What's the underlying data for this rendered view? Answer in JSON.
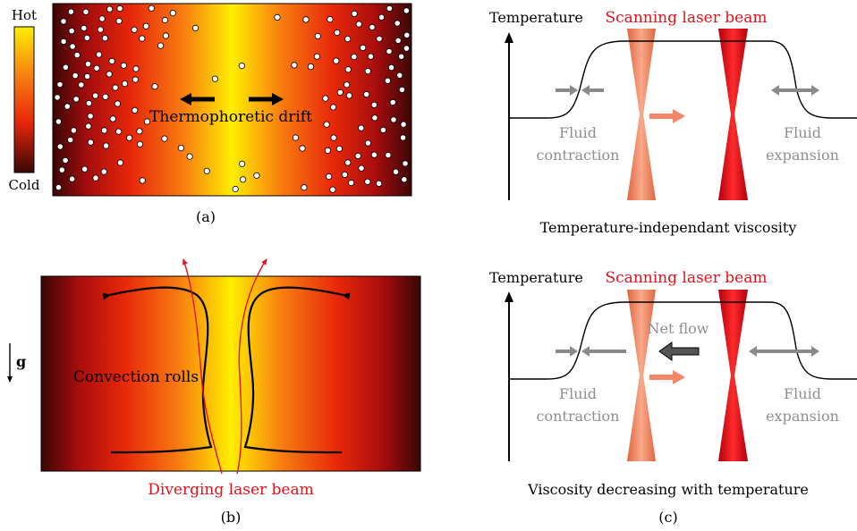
{
  "panel_a": {
    "colorbar_hot": "Hot",
    "colorbar_cold": "Cold",
    "drift_label": "Thermophoretic drift",
    "caption": "(a)"
  },
  "panel_b": {
    "gravity_label": "g",
    "convection_label": "Convection rolls",
    "beam_label": "Diverging laser beam",
    "caption": "(b)"
  },
  "panel_c": {
    "top": {
      "ylabel": "Temperature",
      "beam_label": "Scanning laser beam",
      "left_label_line1": "Fluid",
      "left_label_line2": "contraction",
      "right_label_line1": "Fluid",
      "right_label_line2": "expansion",
      "subtitle": "Temperature-independant viscosity"
    },
    "bottom": {
      "ylabel": "Temperature",
      "beam_label": "Scanning laser beam",
      "net_flow_label": "Net flow",
      "left_label_line1": "Fluid",
      "left_label_line2": "contraction",
      "right_label_line1": "Fluid",
      "right_label_line2": "expansion",
      "subtitle": "Viscosity decreasing with temperature"
    },
    "caption": "(c)"
  },
  "colors": {
    "hot": "#ffee00",
    "mid": "#ff8c00",
    "warm": "#e8280a",
    "cold": "#3a0606",
    "beam_red": "#e8101a",
    "beam_faded": "#f4866a",
    "gray_arrow": "#8a8a8a",
    "label_gray": "#8f8f8f"
  }
}
